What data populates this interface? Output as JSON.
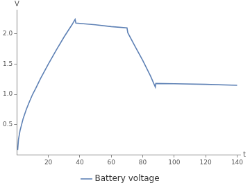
{
  "chart_data": {
    "type": "line",
    "x_label": "t",
    "y_label": "V",
    "x": [
      0.5,
      1,
      2,
      4,
      6,
      8,
      10,
      12,
      15,
      20,
      25,
      30,
      35,
      37,
      37.5,
      50,
      60,
      70,
      70.5,
      75,
      80,
      85,
      88,
      88.3,
      100,
      120,
      140
    ],
    "series": [
      {
        "name": "Battery voltage",
        "color": "#5e81b5",
        "values": [
          0.08,
          0.25,
          0.4,
          0.6,
          0.75,
          0.88,
          1.0,
          1.1,
          1.26,
          1.5,
          1.73,
          1.95,
          2.15,
          2.24,
          2.18,
          2.15,
          2.12,
          2.1,
          2.02,
          1.8,
          1.56,
          1.3,
          1.12,
          1.18,
          1.175,
          1.165,
          1.15
        ]
      }
    ],
    "xlim": [
      0,
      142
    ],
    "ylim": [
      0,
      2.4
    ],
    "xticks": [
      20,
      40,
      60,
      80,
      100,
      120,
      140
    ],
    "yticks": [
      0.5,
      {
        "value": 1,
        "label": "1.0"
      },
      1.5,
      {
        "value": 2,
        "label": "2.0"
      }
    ],
    "legend": "bottom",
    "grid": false
  }
}
